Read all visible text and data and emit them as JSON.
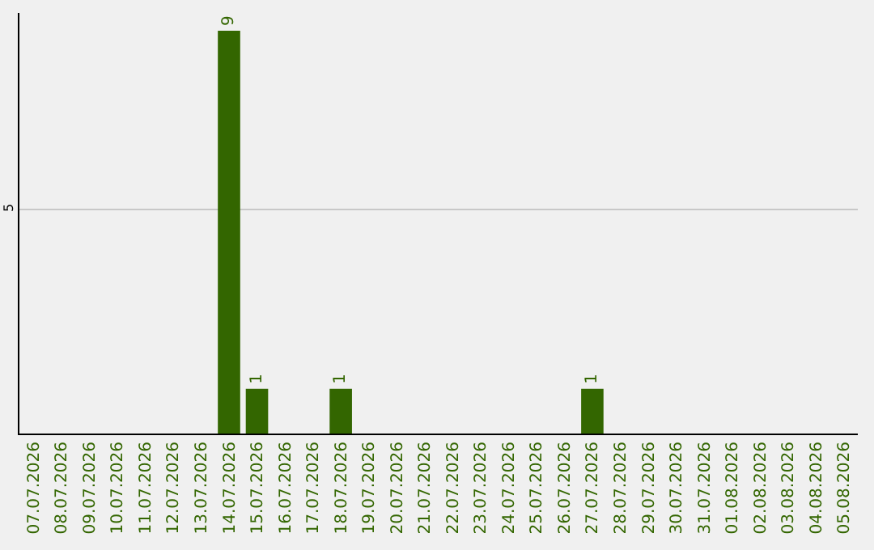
{
  "chart_data": {
    "type": "bar",
    "categories": [
      "07.07.2026",
      "08.07.2026",
      "09.07.2026",
      "10.07.2026",
      "11.07.2026",
      "12.07.2026",
      "13.07.2026",
      "14.07.2026",
      "15.07.2026",
      "16.07.2026",
      "17.07.2026",
      "18.07.2026",
      "19.07.2026",
      "20.07.2026",
      "21.07.2026",
      "22.07.2026",
      "23.07.2026",
      "24.07.2026",
      "25.07.2026",
      "26.07.2026",
      "27.07.2026",
      "28.07.2026",
      "29.07.2026",
      "30.07.2026",
      "31.07.2026",
      "01.08.2026",
      "02.08.2026",
      "03.08.2026",
      "04.08.2026",
      "05.08.2026"
    ],
    "values": [
      0,
      0,
      0,
      0,
      0,
      0,
      0,
      9,
      1,
      0,
      0,
      1,
      0,
      0,
      0,
      0,
      0,
      0,
      0,
      0,
      1,
      0,
      0,
      0,
      0,
      0,
      0,
      0,
      0,
      0
    ],
    "value_labels": [
      null,
      null,
      null,
      null,
      null,
      null,
      null,
      "9",
      "1",
      null,
      null,
      "1",
      null,
      null,
      null,
      null,
      null,
      null,
      null,
      null,
      "1",
      null,
      null,
      null,
      null,
      null,
      null,
      null,
      null,
      null
    ],
    "color": "#336600",
    "ylim": [
      0,
      9.4
    ],
    "yticks": [
      5
    ],
    "grid": "y",
    "legend": false
  }
}
